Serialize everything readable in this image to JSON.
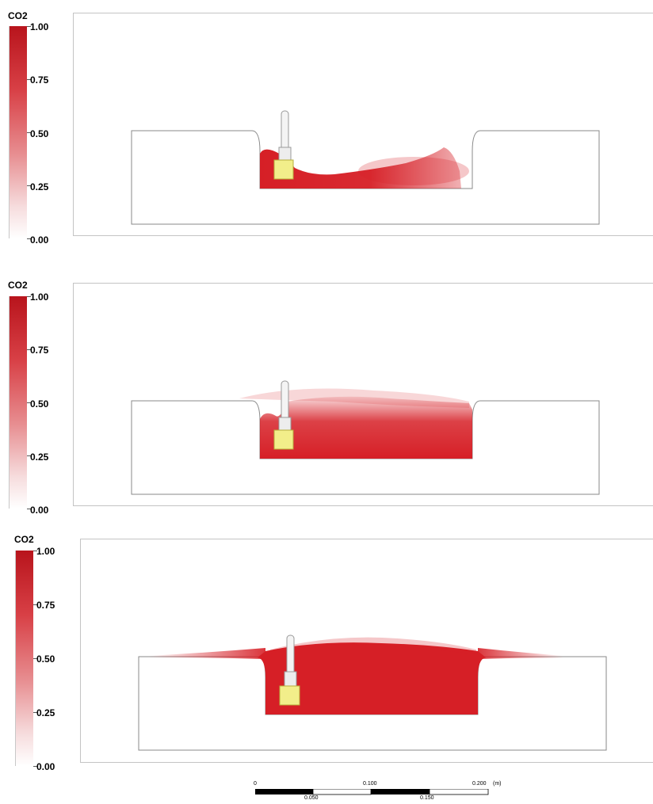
{
  "legend": {
    "title": "CO2",
    "ticks": [
      "1.00",
      "0.75",
      "0.50",
      "0.25",
      "0.00"
    ]
  },
  "panels": [
    {
      "legend_title": "CO2",
      "plume_extent": "low"
    },
    {
      "legend_title": "CO2",
      "plume_extent": "medium"
    },
    {
      "legend_title": "CO2",
      "plume_extent": "high"
    }
  ],
  "scale_bar": {
    "labels_top": [
      "0",
      "0.100",
      "0.200"
    ],
    "labels_bottom": [
      "0.050",
      "0.150"
    ],
    "unit": "(m)"
  },
  "colors": {
    "plume": "#d61f26",
    "cylinder": "#f2ee8a",
    "outline": "#8a8a8a"
  }
}
